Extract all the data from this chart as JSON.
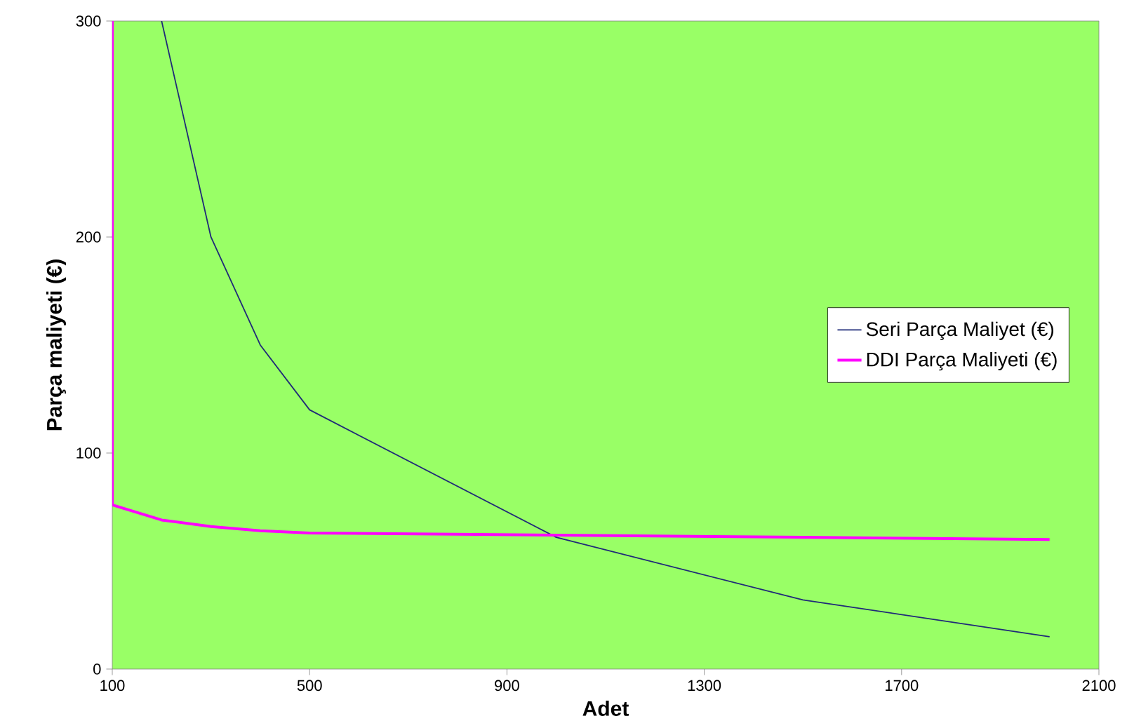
{
  "chart_data": {
    "type": "line",
    "xlabel": "Adet",
    "ylabel": "Parça maliyeti (€)",
    "xlim": [
      100,
      2100
    ],
    "xticks": [
      100,
      500,
      900,
      1300,
      1700,
      2100
    ],
    "ylim": [
      0,
      300
    ],
    "yticks": [
      0,
      100,
      200,
      300
    ],
    "grid": false,
    "legend": "right",
    "marker": "none",
    "series": [
      {
        "name": "Seri Parça Maliyet (€)",
        "color": "#1f2a78",
        "x": [
          200,
          300,
          400,
          500,
          1000,
          1500,
          2000
        ],
        "values": [
          300,
          200,
          150,
          120,
          61,
          32,
          15
        ]
      },
      {
        "name": "DDI Parça Maliyeti (€)",
        "color": "#ff00ff",
        "x": [
          100,
          100,
          200,
          300,
          400,
          500,
          1000,
          1500,
          2000
        ],
        "values": [
          300,
          76,
          69,
          66,
          64,
          63,
          62,
          61,
          60
        ]
      }
    ]
  }
}
